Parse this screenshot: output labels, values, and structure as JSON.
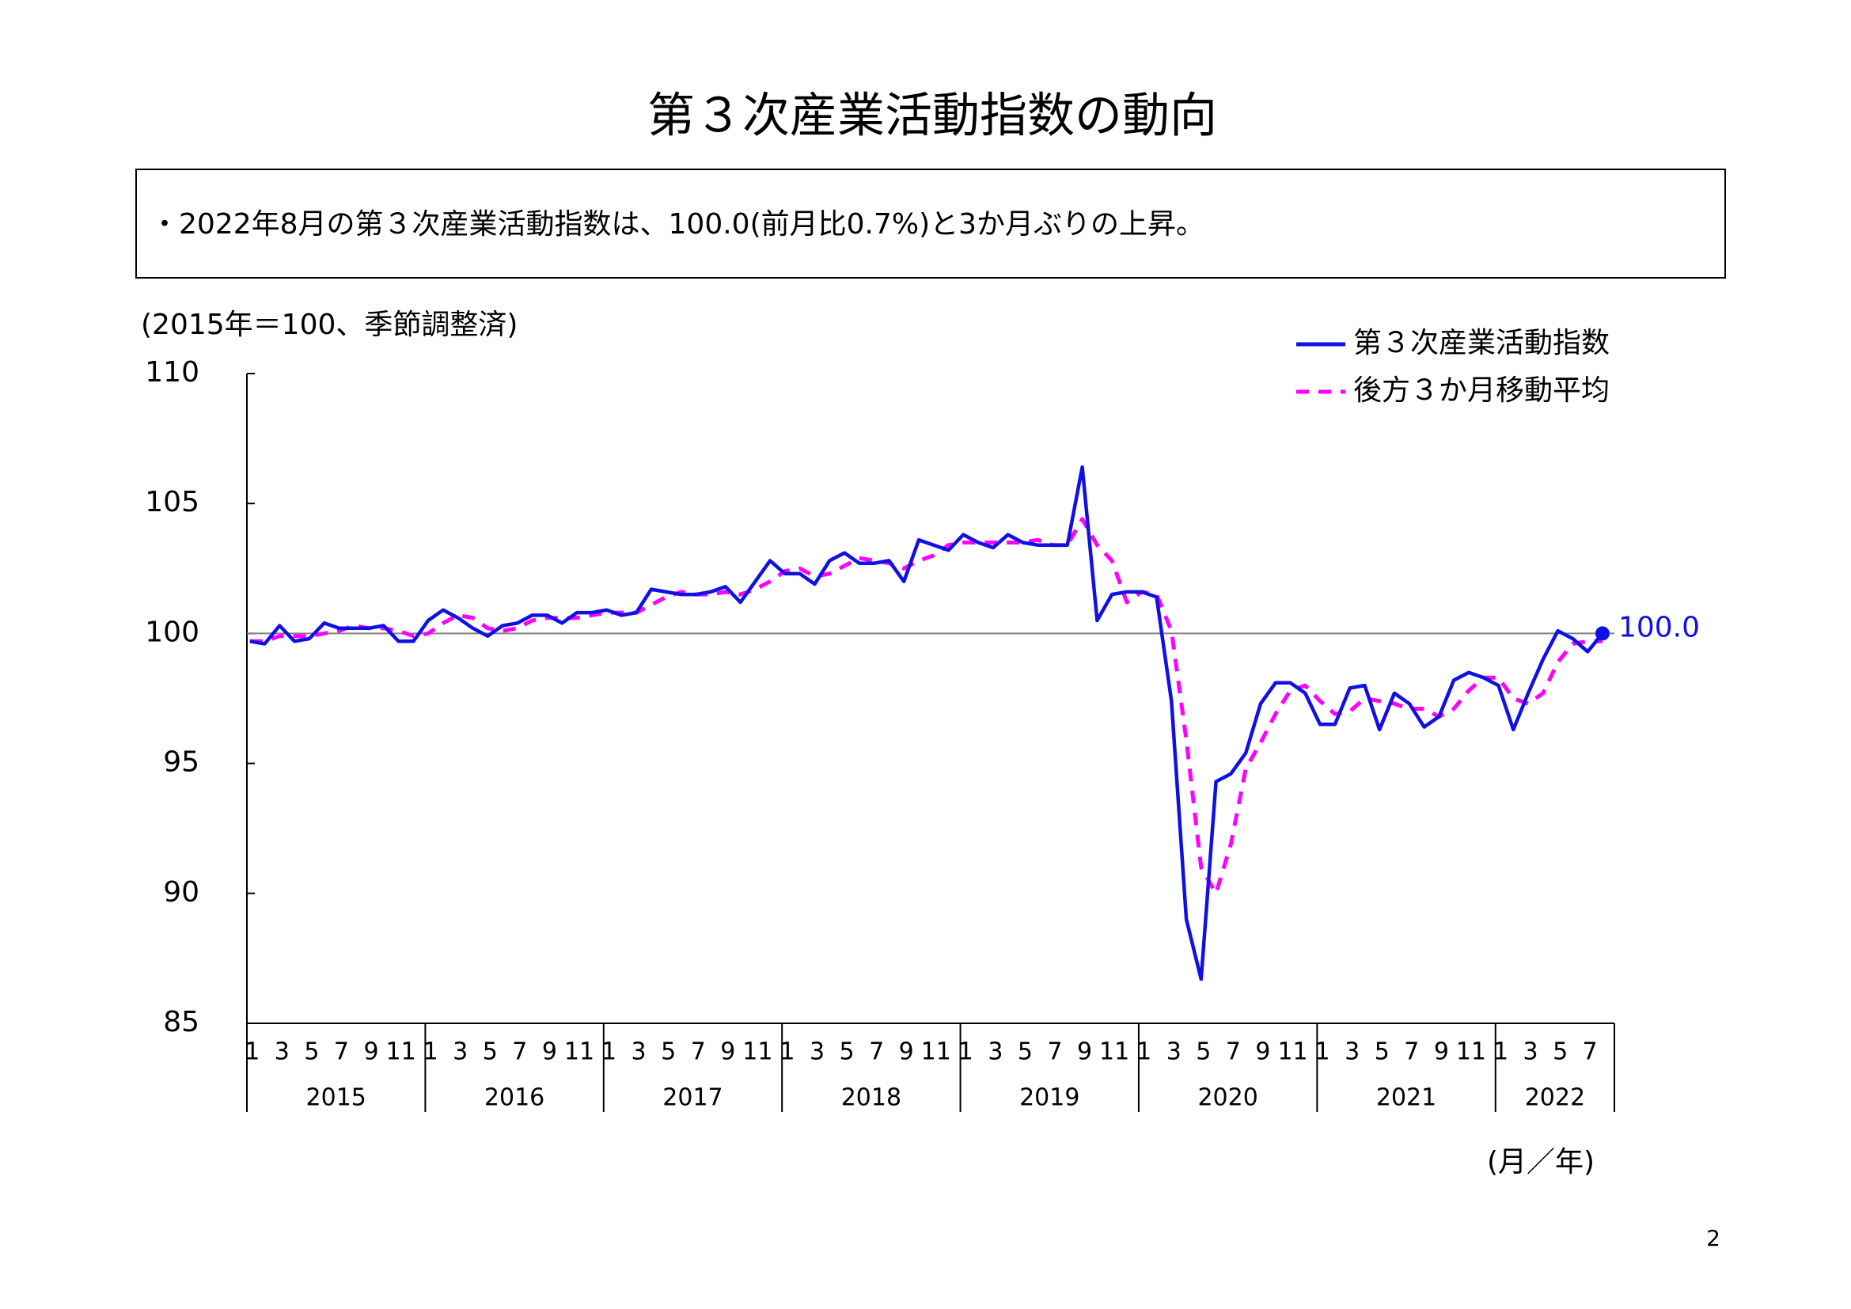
{
  "chart_data": {
    "type": "line",
    "title": "第３次産業活動指数の動向",
    "summary": "・2022年8月の第３次産業活動指数は、100.0(前月比0.7%)と3か月ぶりの上昇。",
    "y_axis_label": "(2015年＝100、季節調整済)",
    "x_axis_label": "(月／年)",
    "page_number": "2",
    "categories": [
      "1",
      null,
      "3",
      null,
      "5",
      null,
      "7",
      null,
      "9",
      null,
      "11",
      null,
      "1",
      null,
      "3",
      null,
      "5",
      null,
      "7",
      null,
      "9",
      null,
      "11",
      null,
      "1",
      null,
      "3",
      null,
      "5",
      null,
      "7",
      null,
      "9",
      null,
      "11",
      null,
      "1",
      null,
      "3",
      null,
      "5",
      null,
      "7",
      null,
      "9",
      null,
      "11",
      null,
      "1",
      null,
      "3",
      null,
      "5",
      null,
      "7",
      null,
      "9",
      null,
      "11",
      null,
      "1",
      null,
      "3",
      null,
      "5",
      null,
      "7",
      null,
      "9",
      null,
      "11",
      null,
      "1",
      null,
      "3",
      null,
      "5",
      null,
      "7",
      null,
      "9",
      null,
      "11",
      null,
      "1",
      null,
      "3",
      null,
      "5",
      null,
      "7",
      null
    ],
    "years": [
      "2015",
      "2016",
      "2017",
      "2018",
      "2019",
      "2020",
      "2021",
      "2022"
    ],
    "ylim": [
      85,
      110
    ],
    "yticks": [
      85,
      90,
      95,
      100,
      105,
      110
    ],
    "reference_line": 100,
    "legend": "top-right",
    "series": [
      {
        "name": "第３次産業活動指数",
        "color": "#1010e6",
        "style": "solid",
        "values": [
          99.7,
          99.6,
          100.3,
          99.7,
          99.8,
          100.4,
          100.2,
          100.2,
          100.2,
          100.3,
          99.7,
          99.7,
          100.5,
          100.9,
          100.6,
          100.2,
          99.9,
          100.3,
          100.4,
          100.7,
          100.7,
          100.4,
          100.8,
          100.8,
          100.9,
          100.7,
          100.8,
          101.7,
          101.6,
          101.5,
          101.5,
          101.6,
          101.8,
          101.2,
          102.0,
          102.8,
          102.3,
          102.3,
          101.9,
          102.8,
          103.1,
          102.7,
          102.7,
          102.8,
          102.0,
          103.6,
          103.4,
          103.2,
          103.8,
          103.5,
          103.3,
          103.8,
          103.5,
          103.4,
          103.4,
          103.4,
          106.4,
          100.5,
          101.5,
          101.6,
          101.6,
          101.4,
          97.4,
          89.0,
          86.7,
          94.3,
          94.6,
          95.4,
          97.3,
          98.1,
          98.1,
          97.7,
          96.5,
          96.5,
          97.9,
          98.0,
          96.3,
          97.7,
          97.3,
          96.4,
          96.8,
          98.2,
          98.5,
          98.3,
          98.0,
          96.3,
          97.7,
          99.0,
          100.1,
          99.8,
          99.3,
          100.0
        ],
        "value_labels": [
          null,
          null,
          null,
          null,
          null,
          null,
          null,
          null,
          null,
          null,
          null,
          null,
          null,
          null,
          null,
          null,
          null,
          null,
          null,
          null,
          null,
          null,
          null,
          null,
          null,
          null,
          null,
          null,
          null,
          null,
          null,
          null,
          null,
          null,
          null,
          null,
          null,
          null,
          null,
          null,
          null,
          null,
          null,
          null,
          null,
          null,
          null,
          null,
          null,
          null,
          null,
          null,
          null,
          null,
          null,
          null,
          null,
          null,
          null,
          null,
          null,
          null,
          null,
          null,
          null,
          null,
          null,
          null,
          null,
          null,
          null,
          null,
          null,
          null,
          null,
          null,
          null,
          null,
          null,
          null,
          null,
          null,
          null,
          null,
          null,
          null,
          null,
          null,
          null,
          null,
          null,
          "100.0"
        ]
      },
      {
        "name": "後方３か月移動平均",
        "color": "#ff00ff",
        "style": "dashed",
        "values": [
          99.7,
          99.7,
          99.9,
          99.9,
          99.9,
          100.0,
          100.1,
          100.3,
          100.2,
          100.2,
          100.1,
          99.9,
          100.0,
          100.4,
          100.7,
          100.6,
          100.2,
          100.1,
          100.2,
          100.5,
          100.6,
          100.6,
          100.6,
          100.7,
          100.8,
          100.8,
          100.8,
          101.1,
          101.4,
          101.6,
          101.5,
          101.5,
          101.6,
          101.5,
          101.7,
          102.0,
          102.4,
          102.5,
          102.2,
          102.3,
          102.6,
          102.9,
          102.8,
          102.7,
          102.5,
          102.8,
          103.0,
          103.4,
          103.5,
          103.5,
          103.5,
          103.5,
          103.5,
          103.6,
          103.4,
          103.4,
          104.4,
          103.4,
          102.8,
          101.2,
          101.6,
          101.5,
          100.1,
          95.9,
          91.0,
          90.0,
          91.9,
          94.8,
          95.8,
          96.9,
          97.8,
          98.0,
          97.4,
          96.9,
          97.0,
          97.5,
          97.4,
          97.3,
          97.1,
          97.1,
          96.8,
          97.1,
          97.8,
          98.3,
          98.3,
          97.5,
          97.3,
          97.7,
          98.9,
          99.6,
          99.7,
          99.7
        ]
      }
    ]
  }
}
